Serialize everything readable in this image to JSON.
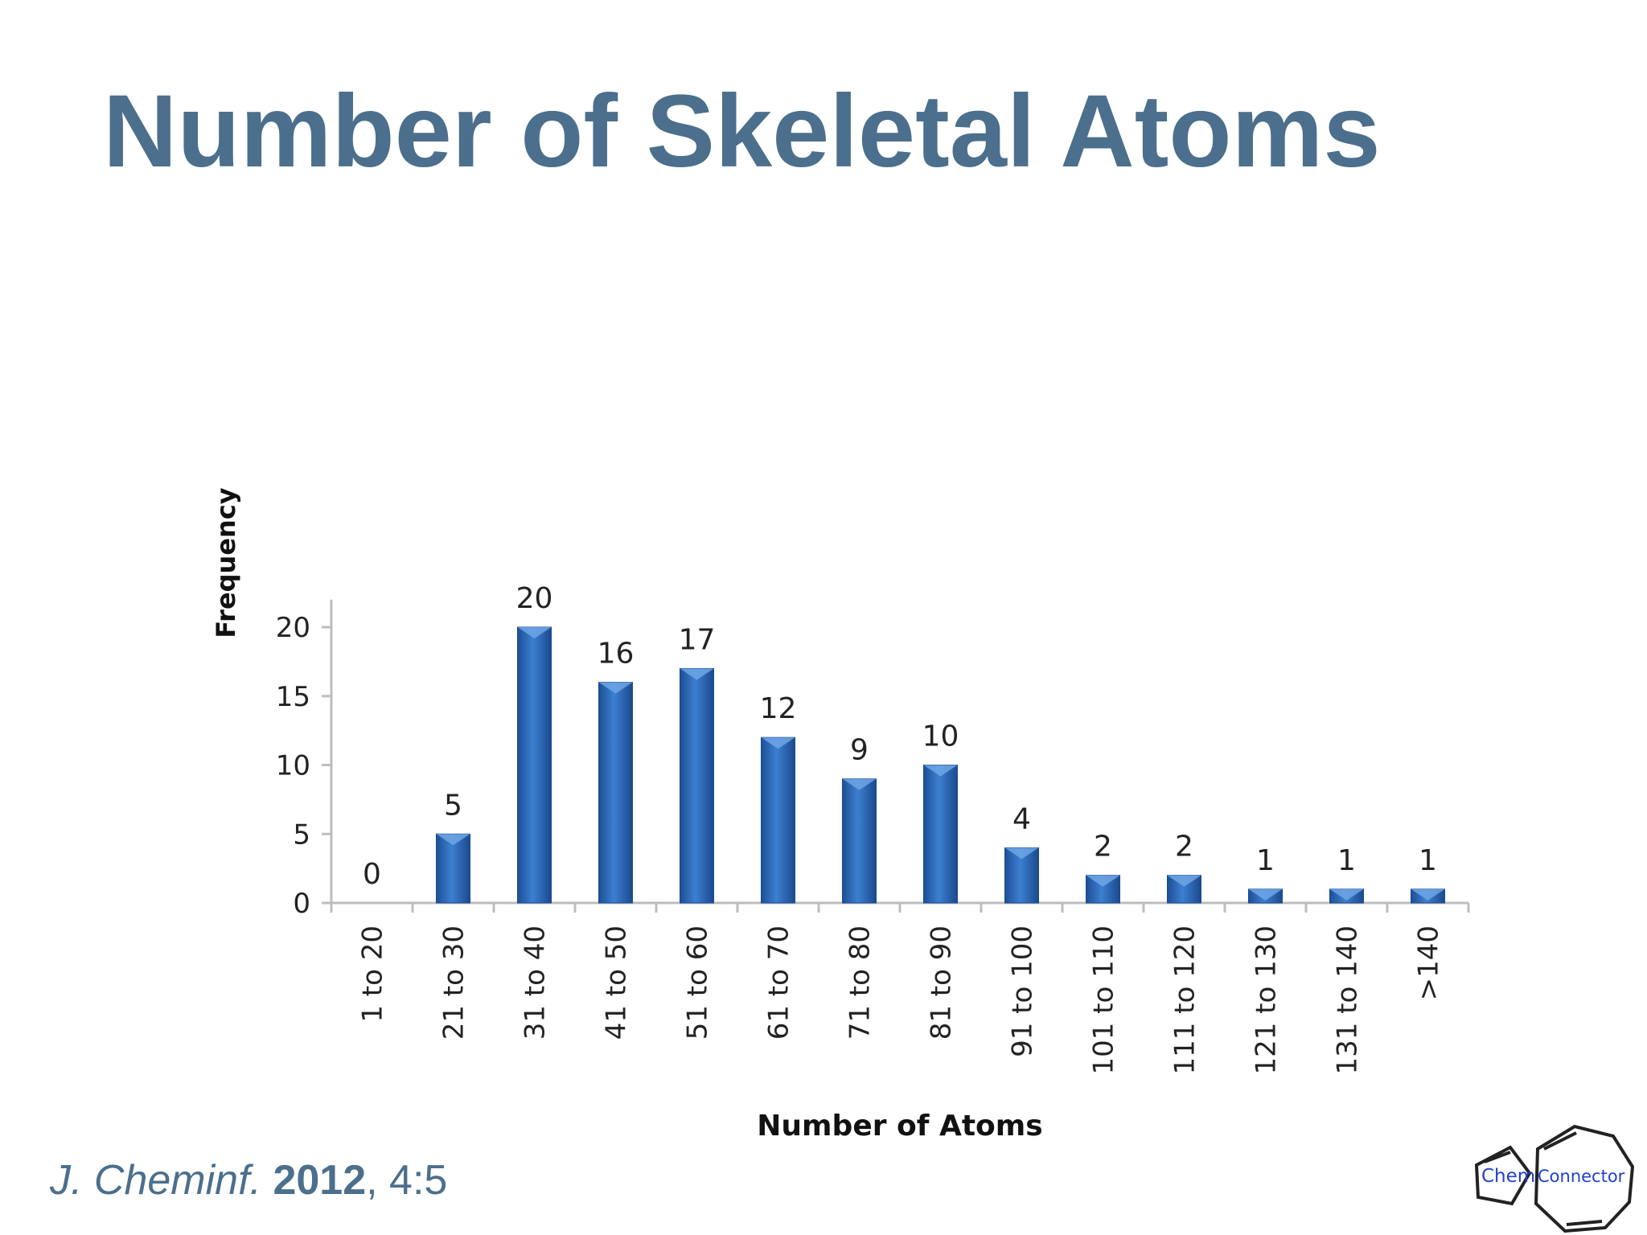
{
  "slide": {
    "title": "Number of Skeletal Atoms",
    "citation": {
      "journal": "J. Cheminf.",
      "year": "2012",
      "volume": ", 4:5"
    },
    "logo": {
      "left": "Chem",
      "right": "Connector",
      "color": "#1f3fd1"
    }
  },
  "chart_data": {
    "type": "bar",
    "categories": [
      "1 to 20",
      "21 to 30",
      "31 to 40",
      "41 to 50",
      "51 to 60",
      "61 to 70",
      "71 to 80",
      "81 to 90",
      "91 to 100",
      "101 to 110",
      "111 to 120",
      "121 to 130",
      "131 to 140",
      ">140"
    ],
    "values": [
      0,
      5,
      20,
      16,
      17,
      12,
      9,
      10,
      4,
      2,
      2,
      1,
      1,
      1
    ],
    "data_labels": [
      "0",
      "5",
      "20",
      "16",
      "17",
      "12",
      "9",
      "10",
      "4",
      "2",
      "2",
      "1",
      "1",
      "1"
    ],
    "xlabel": "Number of Atoms",
    "ylabel": "Frequency",
    "ylim": [
      0,
      22
    ],
    "yticks": [
      0,
      5,
      10,
      15,
      20
    ],
    "grid": false,
    "legend": "none",
    "bar_color": "#2f6fbf"
  }
}
